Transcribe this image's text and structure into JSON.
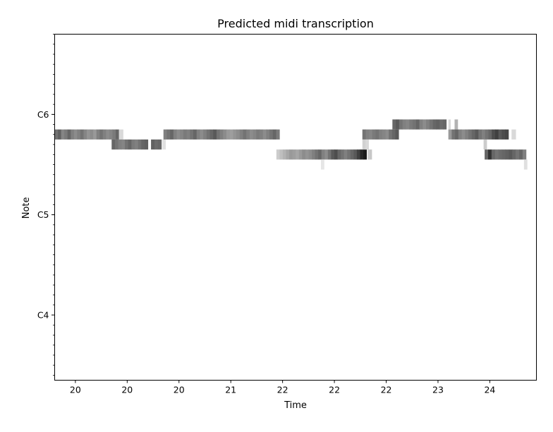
{
  "chart_data": {
    "type": "heatmap",
    "title": "Predicted midi transcription",
    "xlabel": "Time",
    "ylabel": "Note",
    "xlim": [
      19.8,
      24.45
    ],
    "ylim": [
      53.5,
      88
    ],
    "x_ticks": [
      {
        "value": 20.0,
        "label": "20"
      },
      {
        "value": 20.5,
        "label": "20"
      },
      {
        "value": 21.0,
        "label": "20"
      },
      {
        "value": 21.5,
        "label": "21"
      },
      {
        "value": 22.0,
        "label": "22"
      },
      {
        "value": 22.5,
        "label": "22"
      },
      {
        "value": 23.0,
        "label": "22"
      },
      {
        "value": 23.5,
        "label": "23"
      },
      {
        "value": 24.0,
        "label": "24"
      }
    ],
    "y_ticks": [
      {
        "value": 60,
        "label": "C4"
      },
      {
        "value": 70,
        "label": "C5"
      },
      {
        "value": 80,
        "label": "C6"
      }
    ],
    "y_minor_step": 1,
    "grid": false,
    "colormap": "greys",
    "cell_width": 0.032,
    "segments": [
      {
        "note": 78,
        "start": 19.8,
        "end": 20.42,
        "intensities": [
          0.55,
          0.62,
          0.48,
          0.52,
          0.6,
          0.5,
          0.45,
          0.5,
          0.55,
          0.48,
          0.42,
          0.45,
          0.4,
          0.5,
          0.55,
          0.5,
          0.45,
          0.48,
          0.52,
          0.6
        ]
      },
      {
        "note": 78,
        "start": 20.42,
        "end": 20.46,
        "intensities": [
          0.15
        ]
      },
      {
        "note": 77,
        "start": 20.35,
        "end": 20.7,
        "intensities": [
          0.6,
          0.55,
          0.5,
          0.48,
          0.55,
          0.6,
          0.52,
          0.5,
          0.55,
          0.6,
          0.62
        ]
      },
      {
        "note": 77,
        "start": 20.73,
        "end": 20.83,
        "intensities": [
          0.62,
          0.58,
          0.6
        ]
      },
      {
        "note": 77,
        "start": 20.84,
        "end": 20.87,
        "intensities": [
          0.12
        ]
      },
      {
        "note": 78,
        "start": 20.85,
        "end": 21.97,
        "intensities": [
          0.5,
          0.55,
          0.6,
          0.5,
          0.45,
          0.48,
          0.52,
          0.5,
          0.55,
          0.6,
          0.5,
          0.45,
          0.5,
          0.55,
          0.6,
          0.65,
          0.55,
          0.5,
          0.45,
          0.4,
          0.38,
          0.42,
          0.45,
          0.5,
          0.55,
          0.5,
          0.45,
          0.48,
          0.52,
          0.5,
          0.45,
          0.5,
          0.55,
          0.6,
          0.52
        ]
      },
      {
        "note": 76,
        "start": 21.94,
        "end": 22.81,
        "intensities": [
          0.2,
          0.25,
          0.3,
          0.35,
          0.4,
          0.38,
          0.35,
          0.4,
          0.45,
          0.42,
          0.45,
          0.5,
          0.55,
          0.6,
          0.5,
          0.45,
          0.55,
          0.65,
          0.7,
          0.6,
          0.55,
          0.5,
          0.55,
          0.6,
          0.65,
          0.75,
          0.85,
          0.9
        ]
      },
      {
        "note": 76,
        "start": 22.82,
        "end": 22.84,
        "intensities": [
          0.2
        ]
      },
      {
        "note": 75,
        "start": 22.37,
        "end": 22.4,
        "intensities": [
          0.1
        ]
      },
      {
        "note": 78,
        "start": 22.77,
        "end": 23.12,
        "intensities": [
          0.55,
          0.5,
          0.48,
          0.52,
          0.55,
          0.5,
          0.48,
          0.45,
          0.55,
          0.6,
          0.65
        ]
      },
      {
        "note": 77,
        "start": 22.77,
        "end": 22.83,
        "intensities": [
          0.18,
          0.15
        ]
      },
      {
        "note": 76,
        "start": 22.84,
        "end": 22.86,
        "intensities": [
          0.22
        ]
      },
      {
        "note": 79,
        "start": 23.06,
        "end": 23.58,
        "intensities": [
          0.6,
          0.65,
          0.55,
          0.5,
          0.48,
          0.52,
          0.55,
          0.6,
          0.5,
          0.45,
          0.5,
          0.55,
          0.6,
          0.62,
          0.58,
          0.6
        ]
      },
      {
        "note": 79,
        "start": 23.6,
        "end": 23.62,
        "intensities": [
          0.15
        ]
      },
      {
        "note": 79,
        "start": 23.66,
        "end": 23.69,
        "intensities": [
          0.3
        ]
      },
      {
        "note": 78,
        "start": 23.6,
        "end": 24.18,
        "intensities": [
          0.4,
          0.55,
          0.6,
          0.5,
          0.45,
          0.5,
          0.55,
          0.6,
          0.65,
          0.55,
          0.5,
          0.55,
          0.6,
          0.7,
          0.75,
          0.65,
          0.7,
          0.72
        ]
      },
      {
        "note": 78,
        "start": 24.21,
        "end": 24.25,
        "intensities": [
          0.15
        ]
      },
      {
        "note": 77,
        "start": 23.94,
        "end": 23.97,
        "intensities": [
          0.2
        ]
      },
      {
        "note": 76,
        "start": 23.95,
        "end": 24.35,
        "intensities": [
          0.6,
          0.8,
          0.6,
          0.55,
          0.58,
          0.6,
          0.62,
          0.65,
          0.6,
          0.55,
          0.6,
          0.5
        ]
      },
      {
        "note": 75,
        "start": 24.33,
        "end": 24.36,
        "intensities": [
          0.12
        ]
      }
    ]
  }
}
